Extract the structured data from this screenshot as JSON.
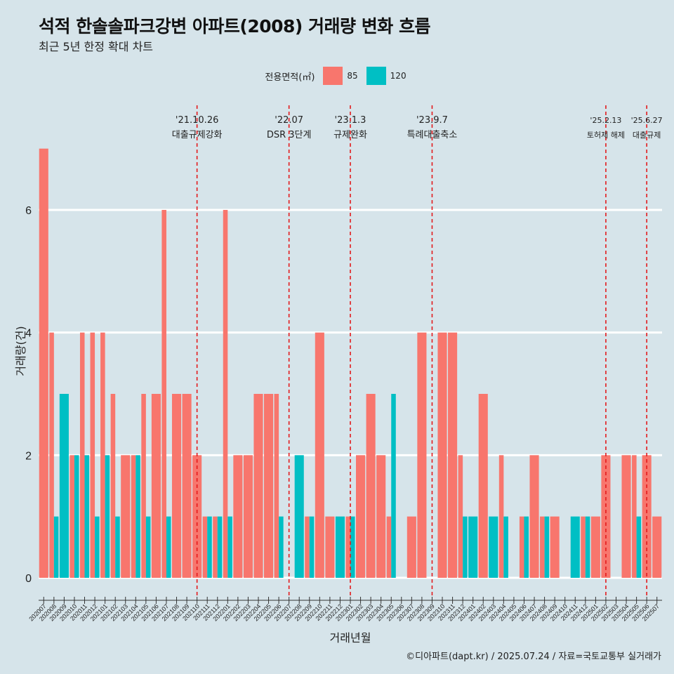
{
  "header": {
    "title": "석적 한솔솔파크강변 아파트(2008) 거래량 변화 흐름",
    "subtitle": "최근 5년 한정 확대 차트"
  },
  "legend": {
    "title": "전용면적(㎡)",
    "items": [
      {
        "label": "85",
        "color": "#f8766d"
      },
      {
        "label": "120",
        "color": "#00bfc4"
      }
    ]
  },
  "footer": "©디아파트(dapt.kr) / 2025.07.24 / 자료=국토교통부 실거래가",
  "chart_data": {
    "type": "bar",
    "xlabel": "거래년월",
    "ylabel": "거래량(건)",
    "ylim": [
      0,
      7
    ],
    "yticks": [
      0,
      2,
      4,
      6
    ],
    "categories": [
      "202007",
      "202008",
      "202009",
      "202010",
      "202011",
      "202012",
      "202101",
      "202102",
      "202103",
      "202104",
      "202105",
      "202106",
      "202107",
      "202108",
      "202109",
      "202110",
      "202111",
      "202112",
      "202201",
      "202202",
      "202203",
      "202204",
      "202205",
      "202206",
      "202207",
      "202208",
      "202209",
      "202210",
      "202211",
      "202212",
      "202301",
      "202302",
      "202303",
      "202304",
      "202305",
      "202306",
      "202307",
      "202308",
      "202309",
      "202310",
      "202311",
      "202312",
      "202401",
      "202402",
      "202403",
      "202404",
      "202405",
      "202406",
      "202407",
      "202408",
      "202409",
      "202410",
      "202411",
      "202412",
      "202501",
      "202502",
      "202503",
      "202504",
      "202505",
      "202506",
      "202507"
    ],
    "series": [
      {
        "name": "85",
        "color": "#f8766d",
        "values": [
          7,
          4,
          0,
          2,
          4,
          4,
          4,
          3,
          2,
          2,
          3,
          3,
          6,
          3,
          3,
          2,
          1,
          1,
          6,
          2,
          2,
          3,
          3,
          3,
          0,
          0,
          1,
          4,
          1,
          0,
          1,
          2,
          3,
          2,
          1,
          0,
          1,
          4,
          0,
          4,
          4,
          2,
          0,
          3,
          0,
          2,
          0,
          1,
          2,
          1,
          1,
          0,
          0,
          1,
          1,
          2,
          0,
          2,
          2,
          2,
          1
        ]
      },
      {
        "name": "120",
        "color": "#00bfc4",
        "values": [
          0,
          1,
          3,
          2,
          2,
          1,
          2,
          1,
          0,
          2,
          1,
          0,
          1,
          0,
          0,
          0,
          1,
          1,
          1,
          0,
          0,
          0,
          0,
          1,
          0,
          2,
          1,
          0,
          0,
          1,
          1,
          0,
          0,
          0,
          3,
          0,
          0,
          0,
          0,
          0,
          0,
          1,
          1,
          0,
          1,
          1,
          0,
          1,
          0,
          1,
          0,
          0,
          1,
          1,
          0,
          0,
          0,
          0,
          1,
          0,
          0
        ]
      }
    ],
    "events": [
      {
        "date": "'21.10.26",
        "label": "대출규제강화",
        "at": "202110"
      },
      {
        "date": "'22.07",
        "label": "DSR 3단계",
        "at": "202207"
      },
      {
        "date": "'23.1.3",
        "label": "규제완화",
        "at": "202301"
      },
      {
        "date": "'23.9.7",
        "label": "특례대출축소",
        "at": "202309"
      },
      {
        "date": "'25.2.13",
        "label": "토허제 해제",
        "at": "202502"
      },
      {
        "date": "'25.6.27",
        "label": "대출규제",
        "at": "202506"
      }
    ]
  }
}
